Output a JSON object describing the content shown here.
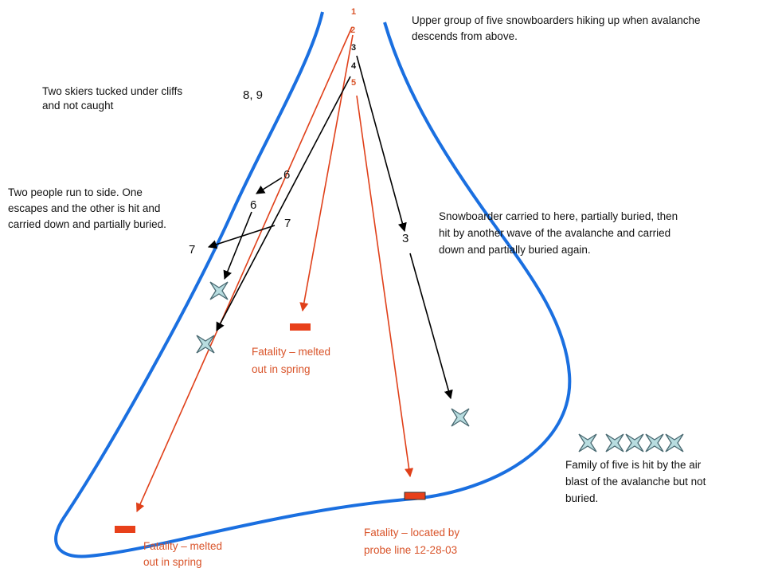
{
  "group_numbers": [
    "1",
    "2",
    "3",
    "4",
    "5"
  ],
  "notes": {
    "upper_group": {
      "lines": [
        "Upper group of five snowboarders hiking up when avalanche",
        "descends from above."
      ]
    },
    "two_skiers": {
      "lines": [
        "Two skiers tucked under cliffs",
        "and not caught"
      ]
    },
    "two_people": {
      "lines": [
        "Two people run to side.  One",
        "escapes and the other is hit and",
        "carried down and partially buried."
      ]
    },
    "snowboarder": {
      "lines": [
        "Snowboarder carried to here, partially buried, then",
        "hit by another wave of the avalanche and carried",
        "down and partially buried again."
      ]
    },
    "fatality_middle": {
      "lines": [
        "Fatality – melted",
        "out in spring"
      ]
    },
    "fatality_probe": {
      "lines": [
        "Fatality – located by",
        "probe line 12-28-03"
      ]
    },
    "fatality_bottom": {
      "lines": [
        "Fatality – melted",
        "out in spring"
      ]
    },
    "family": {
      "lines": [
        "Family of five is hit by the air",
        "blast of the avalanche but not",
        "buried."
      ]
    }
  },
  "path_labels": {
    "skiers": "8,  9",
    "six_upper": "6",
    "six_lower": "6",
    "seven_right": "7",
    "seven_left": "7",
    "three_mid": "3"
  }
}
